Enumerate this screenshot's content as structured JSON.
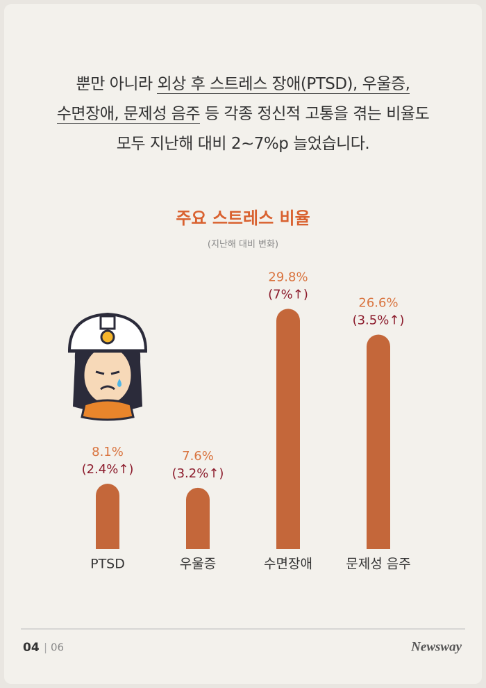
{
  "intro": {
    "lines": [
      [
        {
          "text": "뿐만 아니라 "
        },
        {
          "text": "외상 후 스트레스 장애(PTSD), 우울증,",
          "underline": true
        }
      ],
      [
        {
          "text": "수면장애, 문제성 음주",
          "underline": true
        },
        {
          "text": " 등 각종 정신적 고통을 겪는 비율도"
        }
      ],
      [
        {
          "text": "모두 지난해 대비 2~7%p 늘었습니다."
        }
      ]
    ]
  },
  "chart_data": {
    "type": "bar",
    "title": "주요 스트레스 비율",
    "subtitle": "(지난해 대비 변화)",
    "categories": [
      "PTSD",
      "우울증",
      "수면장애",
      "문제성 음주"
    ],
    "values": [
      8.1,
      7.6,
      29.8,
      26.6
    ],
    "value_labels": [
      "8.1%",
      "7.6%",
      "29.8%",
      "26.6%"
    ],
    "change_labels": [
      "(2.4%↑)",
      "(3.2%↑)",
      "(7%↑)",
      "(3.5%↑)"
    ],
    "color": "#c4673a",
    "ylim": [
      0,
      30
    ]
  },
  "footer": {
    "page": "04",
    "total": "06",
    "brand": "Newsway"
  }
}
